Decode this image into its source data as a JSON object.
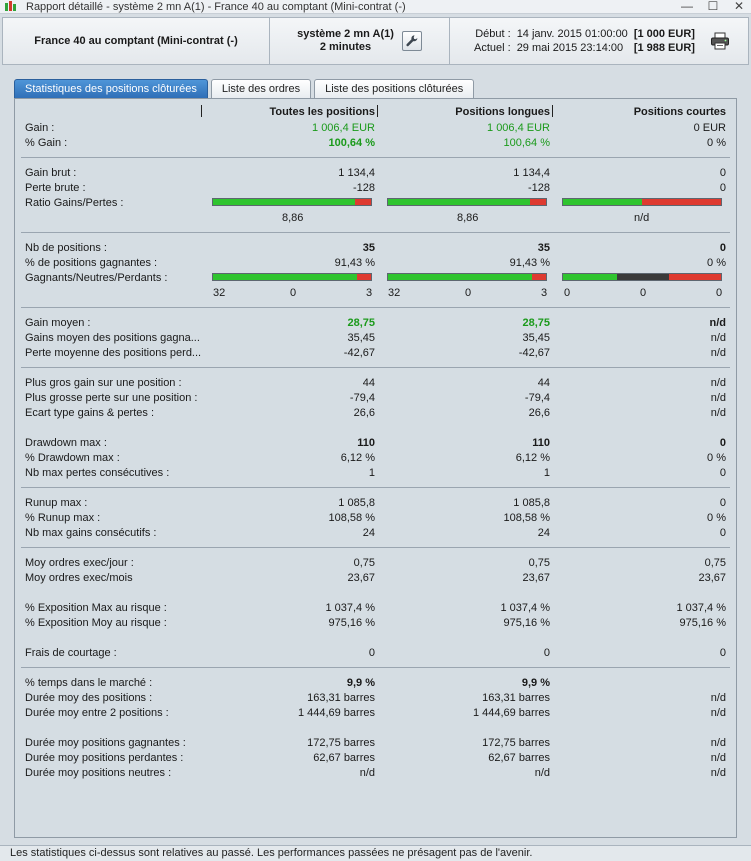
{
  "window": {
    "title": "Rapport détaillé - système 2 mn A(1) - France 40 au comptant (Mini-contrat  (-)",
    "controls": [
      "—",
      "☐",
      "✕"
    ]
  },
  "header": {
    "instrument": "France 40 au comptant (Mini-contrat  (-)",
    "system_line1": "système 2 mn A(1)",
    "system_line2": "2 minutes",
    "debut_label": "Début :",
    "debut_date": "14 janv. 2015 01:00:00",
    "debut_amount": "[1 000 EUR]",
    "actuel_label": "Actuel :",
    "actuel_date": "29 mai 2015 23:14:00",
    "actuel_amount": "[1 988 EUR]"
  },
  "tabs": [
    {
      "label": "Statistiques des positions clôturées",
      "active": true
    },
    {
      "label": "Liste des ordres",
      "active": false
    },
    {
      "label": "Liste des positions clôturées",
      "active": false
    }
  ],
  "columns": {
    "all": "Toutes les positions",
    "long": "Positions longues",
    "short": "Positions courtes"
  },
  "rows": {
    "gain": {
      "label": "Gain :",
      "all": "1 006,4 EUR",
      "long": "1 006,4 EUR",
      "short": "0 EUR"
    },
    "pct_gain": {
      "label": "% Gain :",
      "all": "100,64 %",
      "long": "100,64 %",
      "short": "0 %"
    },
    "gain_brut": {
      "label": "Gain brut :",
      "all": "1 134,4",
      "long": "1 134,4",
      "short": "0"
    },
    "perte_brute": {
      "label": "Perte brute :",
      "all": "-128",
      "long": "-128",
      "short": "0"
    },
    "ratio": {
      "label": "Ratio Gains/Pertes :",
      "all": "8,86",
      "long": "8,86",
      "short": "n/d"
    },
    "nb_positions": {
      "label": "Nb de positions :",
      "all": "35",
      "long": "35",
      "short": "0"
    },
    "pct_gagnantes": {
      "label": "% de positions gagnantes :",
      "all": "91,43 %",
      "long": "91,43 %",
      "short": "0 %"
    },
    "gnp": {
      "label": "Gagnants/Neutres/Perdants :",
      "all": {
        "w": "32",
        "n": "0",
        "l": "3"
      },
      "long": {
        "w": "32",
        "n": "0",
        "l": "3"
      },
      "short": {
        "w": "0",
        "n": "0",
        "l": "0"
      }
    },
    "gain_moyen": {
      "label": "Gain moyen :",
      "all": "28,75",
      "long": "28,75",
      "short": "n/d"
    },
    "gains_moyen_gagnantes": {
      "label": "Gains moyen des positions gagna...",
      "all": "35,45",
      "long": "35,45",
      "short": "n/d"
    },
    "perte_moyenne_perdantes": {
      "label": "Perte moyenne des positions perd...",
      "all": "-42,67",
      "long": "-42,67",
      "short": "n/d"
    },
    "plus_gros_gain": {
      "label": "Plus gros gain sur une position :",
      "all": "44",
      "long": "44",
      "short": "n/d"
    },
    "plus_grosse_perte": {
      "label": "Plus grosse perte sur une position :",
      "all": "-79,4",
      "long": "-79,4",
      "short": "n/d"
    },
    "ecart_type": {
      "label": "Ecart type gains & pertes :",
      "all": "26,6",
      "long": "26,6",
      "short": "n/d"
    },
    "drawdown_max": {
      "label": "Drawdown max :",
      "all": "110",
      "long": "110",
      "short": "0"
    },
    "pct_drawdown_max": {
      "label": "% Drawdown max :",
      "all": "6,12 %",
      "long": "6,12 %",
      "short": "0 %"
    },
    "nb_max_pertes": {
      "label": "Nb max pertes consécutives :",
      "all": "1",
      "long": "1",
      "short": "0"
    },
    "runup_max": {
      "label": "Runup max :",
      "all": "1 085,8",
      "long": "1 085,8",
      "short": "0"
    },
    "pct_runup_max": {
      "label": "% Runup max :",
      "all": "108,58 %",
      "long": "108,58 %",
      "short": "0 %"
    },
    "nb_max_gains": {
      "label": "Nb max gains consécutifs :",
      "all": "24",
      "long": "24",
      "short": "0"
    },
    "moy_ordres_jour": {
      "label": "Moy ordres exec/jour :",
      "all": "0,75",
      "long": "0,75",
      "short": "0,75"
    },
    "moy_ordres_mois": {
      "label": "Moy ordres exec/mois",
      "all": "23,67",
      "long": "23,67",
      "short": "23,67"
    },
    "expo_max": {
      "label": "% Exposition Max au risque :",
      "all": "1 037,4 %",
      "long": "1 037,4 %",
      "short": "1 037,4 %"
    },
    "expo_moy": {
      "label": "% Exposition Moy au risque :",
      "all": "975,16 %",
      "long": "975,16 %",
      "short": "975,16 %"
    },
    "frais": {
      "label": "Frais de courtage :",
      "all": "0",
      "long": "0",
      "short": "0"
    },
    "pct_temps": {
      "label": "% temps dans le marché :",
      "all": "9,9 %",
      "long": "9,9 %",
      "short": ""
    },
    "duree_moy_positions": {
      "label": "Durée moy des positions :",
      "all": "163,31 barres",
      "long": "163,31 barres",
      "short": "n/d"
    },
    "duree_moy_entre": {
      "label": "Durée moy entre 2 positions :",
      "all": "1 444,69 barres",
      "long": "1 444,69 barres",
      "short": "n/d"
    },
    "duree_gagnantes": {
      "label": "Durée moy positions gagnantes :",
      "all": "172,75 barres",
      "long": "172,75 barres",
      "short": "n/d"
    },
    "duree_perdantes": {
      "label": "Durée moy positions perdantes :",
      "all": "62,67 barres",
      "long": "62,67 barres",
      "short": "n/d"
    },
    "duree_neutres": {
      "label": "Durée moy positions neutres :",
      "all": "n/d",
      "long": "n/d",
      "short": "n/d"
    }
  },
  "bars": {
    "ratio": {
      "all": {
        "g": 0.9,
        "k": 0,
        "r": 0.1
      },
      "long": {
        "g": 0.9,
        "k": 0,
        "r": 0.1
      },
      "short": {
        "g": 0.5,
        "k": 0,
        "r": 0.5
      }
    },
    "gnp": {
      "all": {
        "g": 0.91,
        "k": 0,
        "r": 0.09
      },
      "long": {
        "g": 0.91,
        "k": 0,
        "r": 0.09
      },
      "short": {
        "g": 0.34,
        "k": 0.33,
        "r": 0.33
      }
    }
  },
  "colors": {
    "green_value": "#1b9a1b",
    "bar_green": "#2fc42f",
    "bar_red": "#de3a30",
    "bar_neutral": "#3a3a3a",
    "tab_active": "#2f6fb7"
  },
  "icons": {
    "app": "candlestick-icon",
    "system_settings": "wrench-icon",
    "print": "printer-icon"
  },
  "footer": {
    "note": "Les statistiques ci-dessus sont relatives au passé. Les performances passées ne présagent pas de l'avenir."
  }
}
